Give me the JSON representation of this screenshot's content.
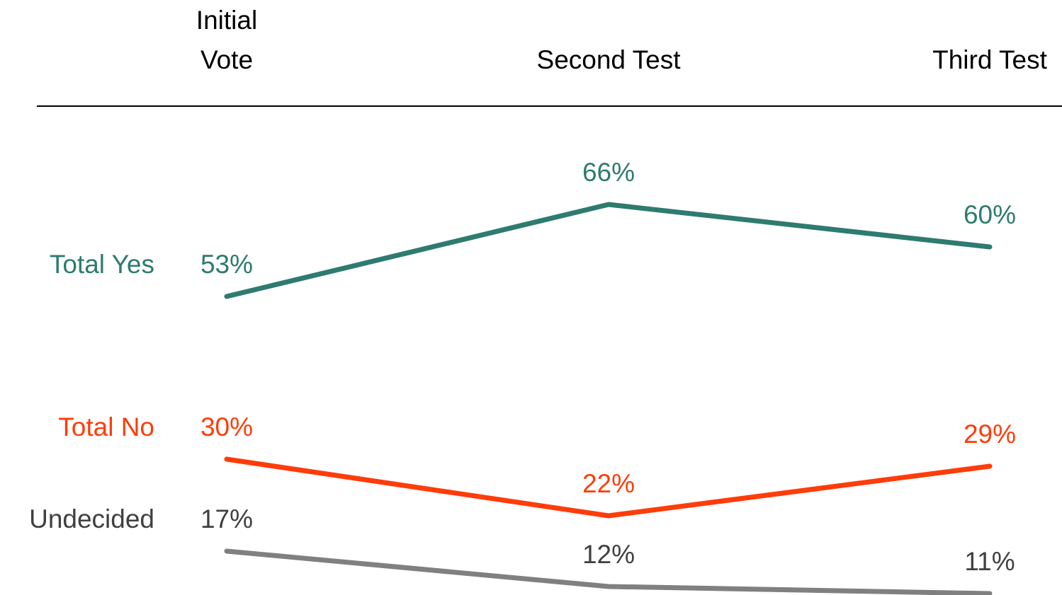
{
  "chart_data": {
    "type": "line",
    "categories": [
      "Initial\nVote",
      "Second Test",
      "Third Test"
    ],
    "series": [
      {
        "name": "Total Yes",
        "color": "#2e7b6f",
        "label_color": "#2e7b6f",
        "values": [
          53,
          66,
          60
        ],
        "value_labels": [
          "53%",
          "66%",
          "60%"
        ]
      },
      {
        "name": "Total No",
        "color": "#ff3c0a",
        "label_color": "#ff3c0a",
        "values": [
          30,
          22,
          29
        ],
        "value_labels": [
          "30%",
          "22%",
          "29%"
        ]
      },
      {
        "name": "Undecided",
        "color": "#808080",
        "label_color": "#404040",
        "values": [
          17,
          12,
          11
        ],
        "value_labels": [
          "17%",
          "12%",
          "11%"
        ]
      }
    ]
  }
}
